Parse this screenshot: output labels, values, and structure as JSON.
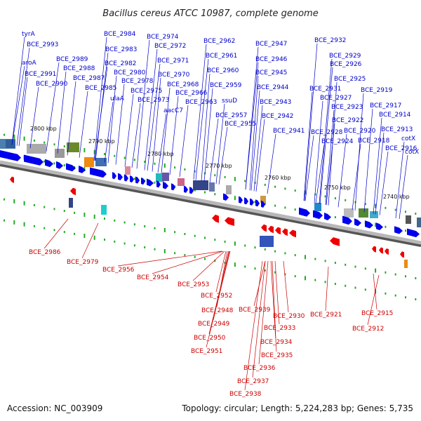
{
  "title": "Bacillus cereus ATCC 10987, complete genome",
  "footer": {
    "accession": "Accession: NC_003909",
    "stats": "Topology: circular; Length: 5,224,283 bp; Genes: 5,735"
  },
  "colors": {
    "forward_gene": "#0000ee",
    "reverse_gene": "#ee0000",
    "axis": "#888888",
    "tick": "#22aa22",
    "label_forward": "#0000cc",
    "label_reverse": "#cc0000"
  },
  "scale_ticks": [
    "2800 kbp",
    "2790 kbp",
    "2780 kbp",
    "2770 kbp",
    "2760 kbp",
    "2750 kbp",
    "2740 kbp"
  ],
  "forward_labels": [
    "tyrA",
    "BCE_2993",
    "aroA",
    "BCE_2991",
    "BCE_2990",
    "BCE_2989",
    "BCE_2988",
    "BCE_2987",
    "BCE_2985",
    "BCE_2984",
    "BCE_2983",
    "BCE_2982",
    "BCE_2980",
    "ulaA",
    "BCE_2978",
    "BCE_2975",
    "BCE_2973",
    "BCE_2974",
    "BCE_2972",
    "BCE_2971",
    "BCE_2970",
    "BCE_2968",
    "BCE_2966",
    "aacC7",
    "BCE_2963",
    "BCE_2962",
    "BCE_2961",
    "BCE_2960",
    "BCE_2959",
    "ssuD",
    "BCE_2957",
    "BCE_2955",
    "BCE_2947",
    "BCE_2946",
    "BCE_2945",
    "BCE_2944",
    "BCE_2943",
    "BCE_2942",
    "BCE_2941",
    "BCE_2932",
    "BCE_2929",
    "BCE_2926",
    "BCE_2925",
    "BCE_2931",
    "BCE_2927",
    "BCE_2923",
    "BCE_2922",
    "BCE_2928",
    "BCE_2924",
    "BCE_2920",
    "BCE_2918",
    "BCE_2919",
    "BCE_2917",
    "BCE_2914",
    "BCE_2913",
    "BCE_2916",
    "cotX",
    "cotX"
  ],
  "reverse_labels": [
    "BCE_2986",
    "BCE_2979",
    "BCE_2956",
    "BCE_2954",
    "BCE_2953",
    "BCE_2952",
    "BCE_2948",
    "BCE_2949",
    "BCE_2950",
    "BCE_2951",
    "BCE_2939",
    "BCE_2930",
    "BCE_2933",
    "BCE_2934",
    "BCE_2935",
    "BCE_2936",
    "BCE_2937",
    "BCE_2938",
    "BCE_2921",
    "BCE_2915",
    "BCE_2912"
  ]
}
